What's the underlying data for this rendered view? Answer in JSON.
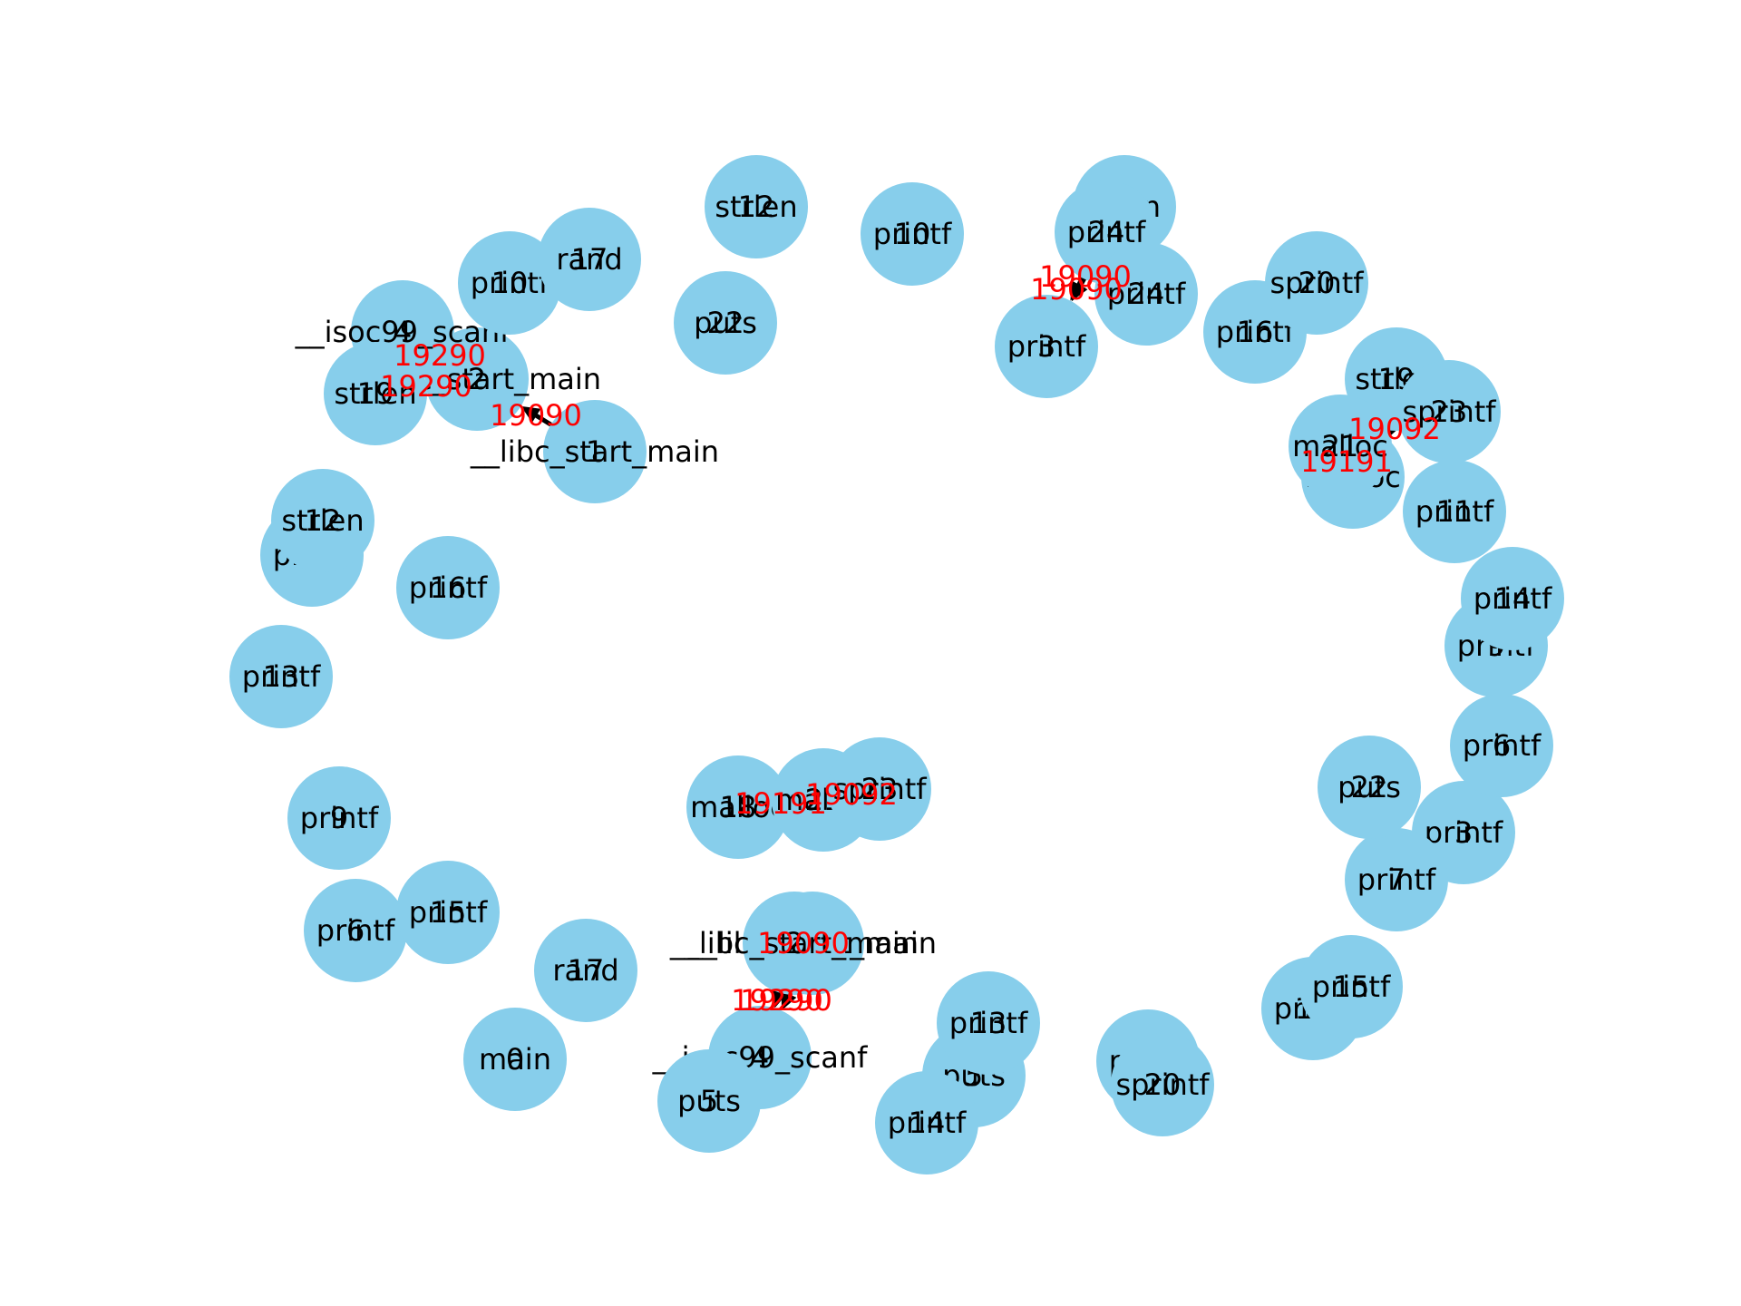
{
  "colors": {
    "node": "#87ceeb",
    "edge": "#000000",
    "edge_label": "#ff0000",
    "text": "#000000"
  },
  "nodes": [
    {
      "id": "m0a",
      "name": "main",
      "num": "0"
    },
    {
      "id": "m0b",
      "name": "main",
      "num": "0"
    },
    {
      "id": "ls1a",
      "name": "__libc_start_main",
      "num": "1"
    },
    {
      "id": "ls1b",
      "name": "__libc_start_main",
      "num": "1"
    },
    {
      "id": "ls2a",
      "name": "__libc_start_main",
      "num": "2"
    },
    {
      "id": "ls2b",
      "name": "__libc_start_main",
      "num": "2"
    },
    {
      "id": "p3a",
      "name": "printf",
      "num": "3"
    },
    {
      "id": "p3b",
      "name": "printf",
      "num": "3"
    },
    {
      "id": "p3c",
      "name": "printf",
      "num": "3"
    },
    {
      "id": "sc4a",
      "name": "__isoc99_scanf",
      "num": "4"
    },
    {
      "id": "sc4b",
      "name": "__isoc99_scanf",
      "num": "4"
    },
    {
      "id": "pu5a",
      "name": "puts",
      "num": "5"
    },
    {
      "id": "pu5b",
      "name": "puts",
      "num": "5"
    },
    {
      "id": "p6a",
      "name": "printf",
      "num": "6"
    },
    {
      "id": "p6b",
      "name": "printf",
      "num": "6"
    },
    {
      "id": "p7a",
      "name": "printf",
      "num": "7"
    },
    {
      "id": "p7b",
      "name": "printf",
      "num": "7"
    },
    {
      "id": "p9a",
      "name": "printf",
      "num": "9"
    },
    {
      "id": "p9b",
      "name": "printf",
      "num": "9"
    },
    {
      "id": "p10a",
      "name": "printf",
      "num": "10"
    },
    {
      "id": "p10b",
      "name": "printf",
      "num": "10"
    },
    {
      "id": "p11a",
      "name": "printf",
      "num": "11"
    },
    {
      "id": "p11b",
      "name": "printf",
      "num": "11"
    },
    {
      "id": "s12a",
      "name": "strlen",
      "num": "12"
    },
    {
      "id": "s12b",
      "name": "strlen",
      "num": "12"
    },
    {
      "id": "p13a",
      "name": "printf",
      "num": "13"
    },
    {
      "id": "p13b",
      "name": "printf",
      "num": "13"
    },
    {
      "id": "p14a",
      "name": "printf",
      "num": "14"
    },
    {
      "id": "p14b",
      "name": "printf",
      "num": "14"
    },
    {
      "id": "p15a",
      "name": "printf",
      "num": "15"
    },
    {
      "id": "p15b",
      "name": "printf",
      "num": "15"
    },
    {
      "id": "p16a",
      "name": "printf",
      "num": "16"
    },
    {
      "id": "p16b",
      "name": "printf",
      "num": "16"
    },
    {
      "id": "r17a",
      "name": "rand",
      "num": "17"
    },
    {
      "id": "r17b",
      "name": "rand",
      "num": "17"
    },
    {
      "id": "ma18a",
      "name": "malloc",
      "num": "18"
    },
    {
      "id": "ma18b",
      "name": "malloc",
      "num": "18"
    },
    {
      "id": "s19a",
      "name": "strlen",
      "num": "19"
    },
    {
      "id": "s19b",
      "name": "strlen",
      "num": "19"
    },
    {
      "id": "sp20a",
      "name": "sprintf",
      "num": "20"
    },
    {
      "id": "sp20b",
      "name": "sprintf",
      "num": "20"
    },
    {
      "id": "ma21a",
      "name": "malloc",
      "num": "21"
    },
    {
      "id": "ma21b",
      "name": "malloc",
      "num": "21"
    },
    {
      "id": "pu22a",
      "name": "puts",
      "num": "22"
    },
    {
      "id": "pu22b",
      "name": "puts",
      "num": "22"
    },
    {
      "id": "sp23a",
      "name": "sprintf",
      "num": "23"
    },
    {
      "id": "sp23b",
      "name": "sprintf",
      "num": "23"
    },
    {
      "id": "p24a",
      "name": "printf",
      "num": "24"
    },
    {
      "id": "p24b",
      "name": "printf",
      "num": "24"
    }
  ],
  "edges": [
    {
      "from": "ls1a",
      "to": "ls2a",
      "label": "19090"
    },
    {
      "from": "sc4a",
      "to": "ls2a",
      "label": "19290"
    },
    {
      "from": "s19a",
      "to": "ls2a",
      "label": "19290"
    },
    {
      "from": "ls2b",
      "to": "sc4b",
      "label": "19290"
    },
    {
      "from": "ls1b",
      "to": "sc4b",
      "label": "19290"
    },
    {
      "from": "ls2b",
      "to": "ls1b",
      "label": "19090"
    },
    {
      "from": "m0a",
      "to": "p3a",
      "label": "19090"
    },
    {
      "from": "p24a",
      "to": "p3a",
      "label": "19090"
    },
    {
      "from": "ma21a",
      "to": "sp23a",
      "label": "19092"
    },
    {
      "from": "ma18a",
      "to": "ma21a",
      "label": "19191"
    },
    {
      "from": "ma21b",
      "to": "sp23b",
      "label": "19092"
    },
    {
      "from": "ma18b",
      "to": "ma21b",
      "label": "19191"
    }
  ]
}
